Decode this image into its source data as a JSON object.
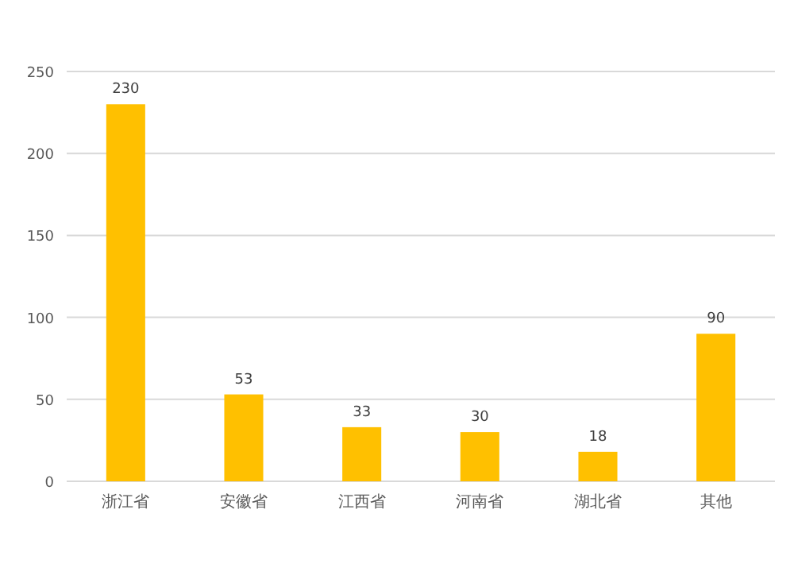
{
  "chart_data": {
    "type": "bar",
    "categories": [
      "浙江省",
      "安徽省",
      "江西省",
      "河南省",
      "湖北省",
      "其他"
    ],
    "values": [
      230,
      53,
      33,
      30,
      18,
      90
    ],
    "color": "#ffc000",
    "ylim": [
      0,
      250
    ],
    "yticks": [
      0,
      50,
      100,
      150,
      200,
      250
    ],
    "grid": "y",
    "data_labels": true
  }
}
